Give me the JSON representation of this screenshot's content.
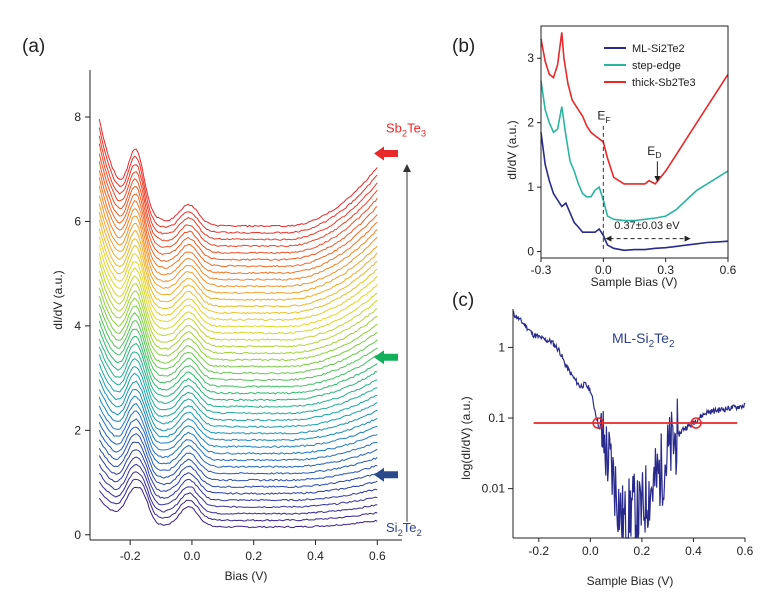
{
  "chart_data": [
    {
      "id": "a",
      "panel_label": "(a)",
      "type": "line",
      "xlabel": "Bias (V)",
      "ylabel": "dI/dV (a.u.)",
      "xlim": [
        -0.33,
        0.68
      ],
      "ylim": [
        -0.1,
        8.9
      ],
      "xticks": [
        -0.2,
        0.0,
        0.2,
        0.4,
        0.6
      ],
      "xtick_labels": [
        "-0.2",
        "0.0",
        "0.2",
        "0.4",
        "0.6"
      ],
      "yticks": [
        0,
        2,
        4,
        6,
        8
      ],
      "ytick_labels": [
        "0",
        "2",
        "4",
        "6",
        "8"
      ],
      "x_range": [
        -0.3,
        0.6
      ],
      "series_count": 46,
      "baseline_start": 0.15,
      "baseline_step": 0.128,
      "color_order": [
        "#3a1f8a",
        "#2c3ea8",
        "#1f6fc4",
        "#18a0b0",
        "#2dbb6e",
        "#8fd23c",
        "#e5d82a",
        "#f2a12b",
        "#ef5a24",
        "#e8282a"
      ],
      "annotations": [
        {
          "text_main": "Sb",
          "text_sub1": "2",
          "text_mid": "Te",
          "text_sub2": "3",
          "color": "#e8282a",
          "y": 7.3
        },
        {
          "text_main": "Si",
          "text_sub1": "2",
          "text_mid": "Te",
          "text_sub2": "2",
          "color": "#2e3f8a",
          "y": 0.3
        }
      ],
      "arrows": [
        {
          "color": "#e8282a",
          "y": 7.3
        },
        {
          "color": "#13b05c",
          "y": 3.4
        },
        {
          "color": "#2b4a8c",
          "y": 1.15
        }
      ],
      "sweep_arrow": {
        "from": 0.25,
        "to": 7.1
      }
    },
    {
      "id": "b",
      "panel_label": "(b)",
      "type": "line",
      "xlabel": "Sample Bias (V)",
      "ylabel": "dI/dV (a.u.)",
      "xlim": [
        -0.3,
        0.6
      ],
      "ylim": [
        -0.1,
        3.5
      ],
      "xticks": [
        -0.3,
        0.0,
        0.3,
        0.6
      ],
      "xtick_labels": [
        "-0.3",
        "0.0",
        "0.3",
        "0.6"
      ],
      "yticks": [
        0,
        1,
        2,
        3
      ],
      "ytick_labels": [
        "0",
        "1",
        "2",
        "3"
      ],
      "series": [
        {
          "name": "ML-Si2Te2",
          "color": "#2a2a8c",
          "x": [
            -0.3,
            -0.28,
            -0.26,
            -0.24,
            -0.22,
            -0.2,
            -0.18,
            -0.16,
            -0.14,
            -0.12,
            -0.1,
            -0.08,
            -0.06,
            -0.04,
            -0.02,
            0.0,
            0.02,
            0.05,
            0.1,
            0.15,
            0.2,
            0.25,
            0.3,
            0.35,
            0.4,
            0.45,
            0.5,
            0.55,
            0.6
          ],
          "y": [
            1.85,
            1.35,
            1.1,
            0.9,
            0.8,
            0.7,
            0.75,
            0.6,
            0.45,
            0.38,
            0.3,
            0.3,
            0.3,
            0.3,
            0.35,
            0.25,
            0.1,
            0.05,
            0.02,
            0.03,
            0.03,
            0.05,
            0.06,
            0.08,
            0.1,
            0.12,
            0.14,
            0.15,
            0.16
          ]
        },
        {
          "name": "step-edge",
          "color": "#2bb5a0",
          "x": [
            -0.3,
            -0.28,
            -0.26,
            -0.24,
            -0.22,
            -0.2,
            -0.18,
            -0.16,
            -0.14,
            -0.12,
            -0.1,
            -0.08,
            -0.06,
            -0.04,
            -0.02,
            0.0,
            0.02,
            0.05,
            0.1,
            0.15,
            0.2,
            0.25,
            0.3,
            0.35,
            0.4,
            0.45,
            0.5,
            0.55,
            0.6
          ],
          "y": [
            2.65,
            2.2,
            2.0,
            1.85,
            1.9,
            2.25,
            1.8,
            1.4,
            1.25,
            1.05,
            0.9,
            0.85,
            0.85,
            0.95,
            1.0,
            0.8,
            0.55,
            0.5,
            0.48,
            0.48,
            0.5,
            0.52,
            0.55,
            0.65,
            0.8,
            0.95,
            1.05,
            1.15,
            1.25
          ]
        },
        {
          "name": "thick-Sb2Te3",
          "color": "#e8282a",
          "x": [
            -0.3,
            -0.28,
            -0.26,
            -0.24,
            -0.22,
            -0.2,
            -0.19,
            -0.17,
            -0.15,
            -0.12,
            -0.1,
            -0.08,
            -0.06,
            -0.04,
            -0.02,
            0.0,
            0.02,
            0.05,
            0.1,
            0.15,
            0.2,
            0.22,
            0.25,
            0.3,
            0.35,
            0.4,
            0.45,
            0.5,
            0.55,
            0.6
          ],
          "y": [
            3.3,
            2.95,
            2.75,
            2.7,
            2.9,
            3.4,
            3.0,
            2.6,
            2.35,
            2.2,
            2.1,
            1.95,
            1.85,
            1.8,
            1.75,
            1.7,
            1.45,
            1.15,
            1.05,
            1.05,
            1.05,
            1.1,
            1.05,
            1.25,
            1.5,
            1.75,
            2.0,
            2.25,
            2.5,
            2.75
          ]
        }
      ],
      "annotations": {
        "ef": "E",
        "ef_sub": "F",
        "ed": "E",
        "ed_sub": "D",
        "gap": "0.37±0.03 eV"
      }
    },
    {
      "id": "c",
      "panel_label": "(c)",
      "type": "line",
      "title": "ML-Si2Te2",
      "xlabel": "Sample Bias (V)",
      "ylabel": "log(dI/dV) (a.u.)",
      "xlim": [
        -0.3,
        0.6
      ],
      "ylim_log": [
        0.002,
        3.5
      ],
      "xticks": [
        -0.2,
        0.0,
        0.2,
        0.4,
        0.6
      ],
      "xtick_labels": [
        "-0.2",
        "0.0",
        "0.2",
        "0.4",
        "0.6"
      ],
      "yticks": [
        0.01,
        0.1,
        1
      ],
      "ytick_labels": [
        "0.01",
        "0.1",
        "1"
      ],
      "series": [
        {
          "name": "ML-Si2Te2",
          "color": "#2a2a8c",
          "x": [
            -0.3,
            -0.28,
            -0.25,
            -0.22,
            -0.2,
            -0.18,
            -0.15,
            -0.12,
            -0.1,
            -0.08,
            -0.06,
            -0.04,
            -0.02,
            0.0,
            0.02,
            0.04,
            0.06,
            0.08,
            0.1,
            0.12,
            0.14,
            0.16,
            0.18,
            0.2,
            0.22,
            0.25,
            0.28,
            0.3,
            0.33,
            0.36,
            0.39,
            0.42,
            0.45,
            0.5,
            0.55,
            0.6
          ],
          "y": [
            3.0,
            2.6,
            2.0,
            1.5,
            1.4,
            1.3,
            1.2,
            0.9,
            0.6,
            0.45,
            0.35,
            0.28,
            0.3,
            0.25,
            0.12,
            0.06,
            0.035,
            0.02,
            0.01,
            0.004,
            0.003,
            0.006,
            0.004,
            0.005,
            0.008,
            0.012,
            0.02,
            0.03,
            0.05,
            0.07,
            0.08,
            0.1,
            0.12,
            0.13,
            0.14,
            0.15
          ]
        }
      ],
      "hline": {
        "y": 0.085,
        "x_from": -0.22,
        "x_to": 0.57,
        "color": "#e8282a"
      },
      "markers": [
        {
          "x": 0.03,
          "y": 0.085
        },
        {
          "x": 0.41,
          "y": 0.085
        }
      ]
    }
  ]
}
